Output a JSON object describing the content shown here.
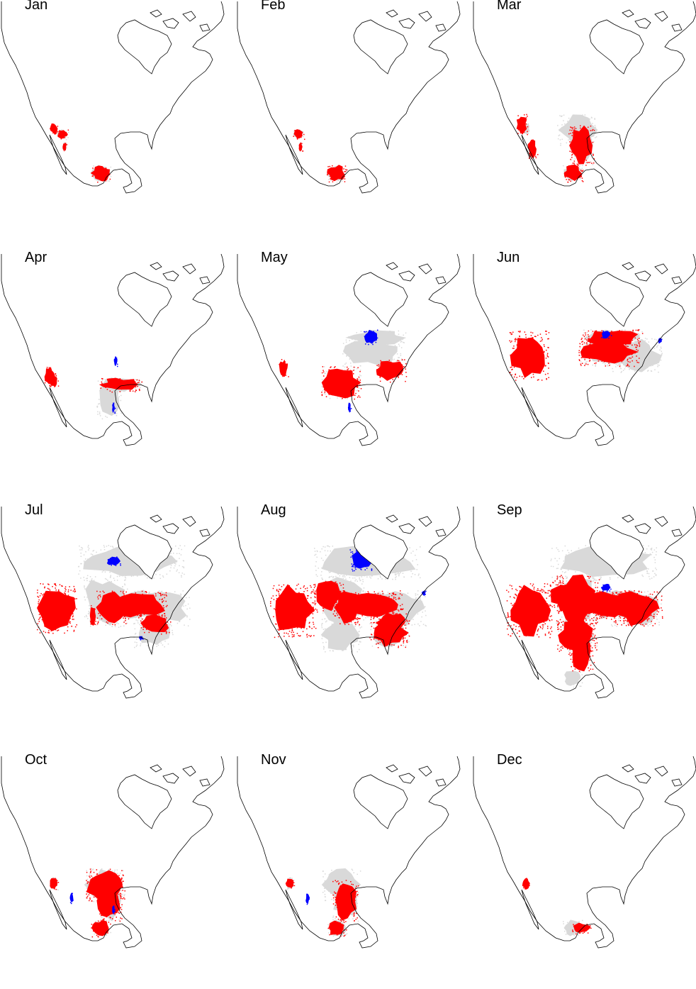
{
  "figure": {
    "colors": {
      "coastline": "#000000",
      "gray": "#d9d9d9",
      "red": "#ff0000",
      "blue": "#0000ff",
      "background": "#ffffff"
    },
    "panels": [
      {
        "month": "Jan",
        "gray": [
          "bajasw",
          "mexs"
        ],
        "red": [
          "bajasw",
          "calsouth",
          "mexs"
        ],
        "blue": []
      },
      {
        "month": "Feb",
        "gray": [
          "bajasw",
          "mexs"
        ],
        "red": [
          "bajasw",
          "mexs"
        ],
        "blue": []
      },
      {
        "month": "Mar",
        "gray": [
          "calsouth",
          "texas",
          "southplains",
          "mexs"
        ],
        "red": [
          "calcoast",
          "baja",
          "texas",
          "mexs"
        ],
        "blue": []
      },
      {
        "month": "Apr",
        "gray": [
          "texas",
          "gulfcoast"
        ],
        "red": [
          "calcoast",
          "gulfcoast",
          "calsouth"
        ],
        "blue": [
          "plains_dot",
          "gulf_dot"
        ]
      },
      {
        "month": "May",
        "gray": [
          "greatlakes",
          "midwest",
          "southplains"
        ],
        "red": [
          "calnorth",
          "southplains",
          "appalachia"
        ],
        "blue": [
          "lakesup",
          "gulf_dot"
        ]
      },
      {
        "month": "Jun",
        "gray": [
          "greatlakes",
          "midwest",
          "east"
        ],
        "red": [
          "west_big",
          "greatlakes",
          "midwest"
        ],
        "blue": [
          "lakesup_small",
          "east_dot"
        ]
      },
      {
        "month": "Jul",
        "gray": [
          "canada_band",
          "plains",
          "midwest",
          "east",
          "southeast"
        ],
        "red": [
          "west_big",
          "plains_patch",
          "midwest",
          "appalachia",
          "nevada_bar"
        ],
        "blue": [
          "manitoba",
          "se_dot"
        ]
      },
      {
        "month": "Aug",
        "gray": [
          "canada_band",
          "plains",
          "midwest",
          "east",
          "southeast",
          "southplains"
        ],
        "red": [
          "west",
          "rockies",
          "plains_patch",
          "midwest",
          "appalachia",
          "southeast"
        ],
        "blue": [
          "hudson_south",
          "east_dot"
        ]
      },
      {
        "month": "Sep",
        "gray": [
          "canada_band",
          "plains",
          "midwest",
          "east",
          "southplains",
          "mexs"
        ],
        "red": [
          "west",
          "rockies",
          "plains",
          "midwest",
          "southplains",
          "east",
          "texas"
        ],
        "blue": [
          "lakesup_small"
        ]
      },
      {
        "month": "Oct",
        "gray": [
          "southplains",
          "texas",
          "mexs",
          "calsouth"
        ],
        "red": [
          "calsouth",
          "texas",
          "mexs",
          "southplains"
        ],
        "blue": [
          "gulf_dot",
          "baja_dot"
        ]
      },
      {
        "month": "Nov",
        "gray": [
          "southplains",
          "texas",
          "mexs",
          "calsouth"
        ],
        "red": [
          "calsouth",
          "mexs",
          "texas"
        ],
        "blue": [
          "baja_dot"
        ]
      },
      {
        "month": "Dec",
        "gray": [
          "mexs"
        ],
        "red": [
          "calsouth",
          "mexs_east"
        ],
        "blue": []
      }
    ]
  }
}
